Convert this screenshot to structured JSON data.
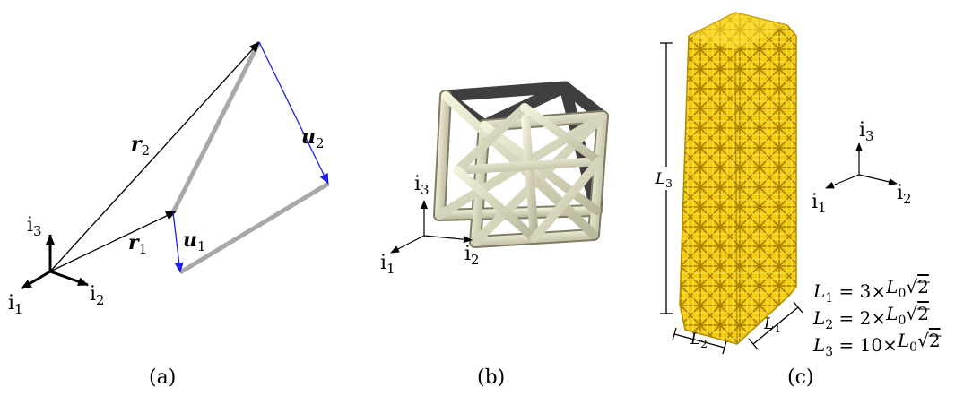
{
  "colors": {
    "black": "#000000",
    "blue": "#1e1ee6",
    "grey": "#a8a8a8",
    "strut_light": "#e6e3c8",
    "strut_dark": "#4b4b4b",
    "gold": "#f0c800",
    "gold_dark": "#b48c00"
  },
  "panel_a": {
    "caption": "(a)",
    "axis": {
      "i1": {
        "base": "i",
        "sub": "1"
      },
      "i2": {
        "base": "i",
        "sub": "2"
      },
      "i3": {
        "base": "i",
        "sub": "3"
      }
    },
    "vectors": {
      "r1": {
        "base": "r",
        "sub": "1"
      },
      "r2": {
        "base": "r",
        "sub": "2"
      },
      "u1": {
        "base": "u",
        "sub": "1"
      },
      "u2": {
        "base": "u",
        "sub": "2"
      }
    }
  },
  "panel_b": {
    "caption": "(b)",
    "axis": {
      "i1": {
        "base": "i",
        "sub": "1"
      },
      "i2": {
        "base": "i",
        "sub": "2"
      },
      "i3": {
        "base": "i",
        "sub": "3"
      }
    }
  },
  "panel_c": {
    "caption": "(c)",
    "axis": {
      "i1": {
        "base": "i",
        "sub": "1"
      },
      "i2": {
        "base": "i",
        "sub": "2"
      },
      "i3": {
        "base": "i",
        "sub": "3"
      }
    },
    "dims": {
      "L1": {
        "base": "L",
        "sub": "1"
      },
      "L2": {
        "base": "L",
        "sub": "2"
      },
      "L3": {
        "base": "L",
        "sub": "3"
      }
    },
    "equations": [
      {
        "lhs": "L",
        "lsub": "1",
        "coef": "= 3×",
        "r": "L",
        "rsub": "0",
        "root": "2"
      },
      {
        "lhs": "L",
        "lsub": "2",
        "coef": "= 2×",
        "r": "L",
        "rsub": "0",
        "root": "2"
      },
      {
        "lhs": "L",
        "lsub": "3",
        "coef": "= 10×",
        "r": "L",
        "rsub": "0",
        "root": "2"
      }
    ]
  }
}
